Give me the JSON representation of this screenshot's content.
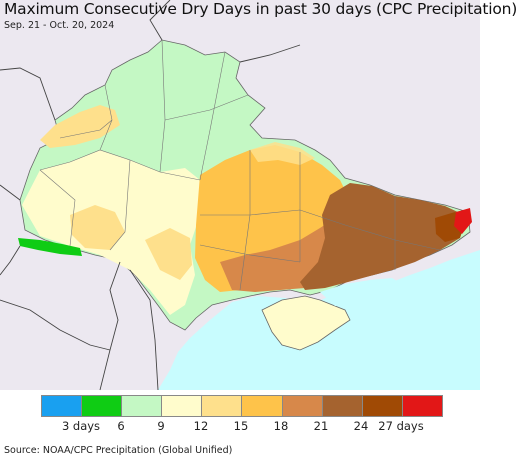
{
  "header": {
    "title": "Maximum Consecutive Dry Days in past 30 days (CPC Precipitation)",
    "subtitle": "Sep. 21 - Oct. 20, 2024"
  },
  "legend": {
    "colors": [
      "#19a0f0",
      "#0fcc14",
      "#c4f8c4",
      "#fffccc",
      "#fee08c",
      "#fec34a",
      "#d7884a",
      "#a5632f",
      "#a04a05",
      "#e21717"
    ],
    "labels": [
      "3 days",
      "6",
      "9",
      "12",
      "15",
      "18",
      "21",
      "24",
      "27 days"
    ]
  },
  "map": {
    "sea_color": "#c8fcfe",
    "land_color": "#ece8f0",
    "region": "Ukraine"
  },
  "footer": {
    "source": "Source: NOAA/CPC Precipitation (Global Unified)"
  }
}
